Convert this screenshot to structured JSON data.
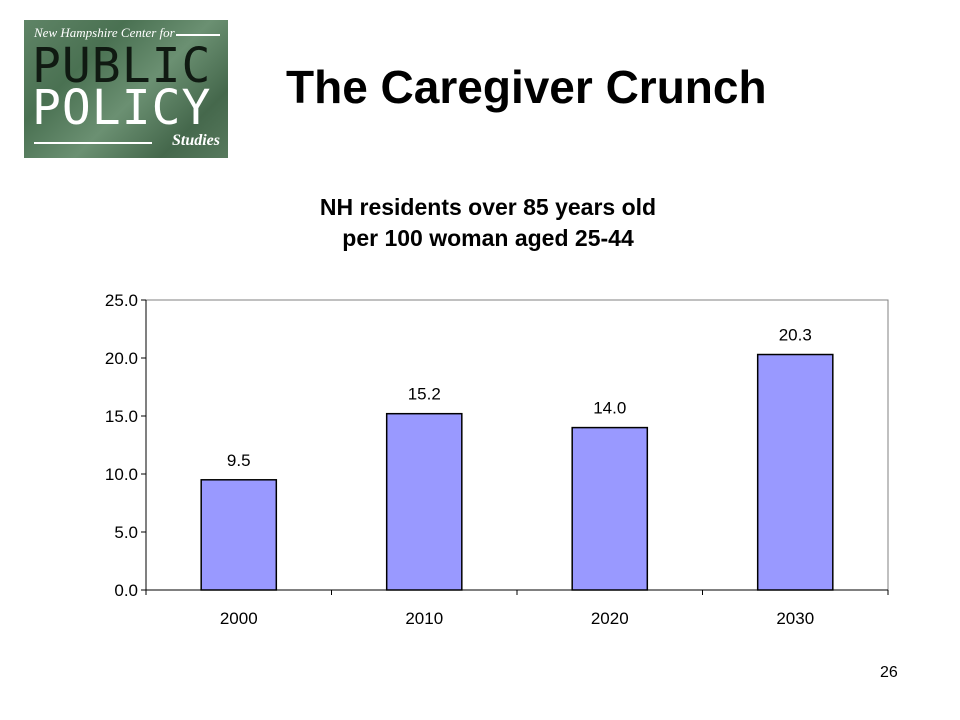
{
  "logo": {
    "org": "New Hampshire Center for",
    "word1": "PUBLIC",
    "word2": "POLICY",
    "sub": "Studies"
  },
  "slide": {
    "title": "The Caregiver Crunch",
    "page_number": "26"
  },
  "colors": {
    "bar_fill": "#9999ff",
    "bar_stroke": "#000000"
  },
  "chart_data": {
    "type": "bar",
    "title_lines": [
      "NH residents over 85 years old",
      "per 100 woman aged 25-44"
    ],
    "categories": [
      "2000",
      "2010",
      "2020",
      "2030"
    ],
    "values": [
      9.5,
      15.2,
      14.0,
      20.3
    ],
    "value_labels": [
      "9.5",
      "15.2",
      "14.0",
      "20.3"
    ],
    "ylim": [
      0,
      25
    ],
    "yticks": [
      "0.0",
      "5.0",
      "10.0",
      "15.0",
      "20.0",
      "25.0"
    ],
    "grid": false,
    "legend": "none"
  }
}
